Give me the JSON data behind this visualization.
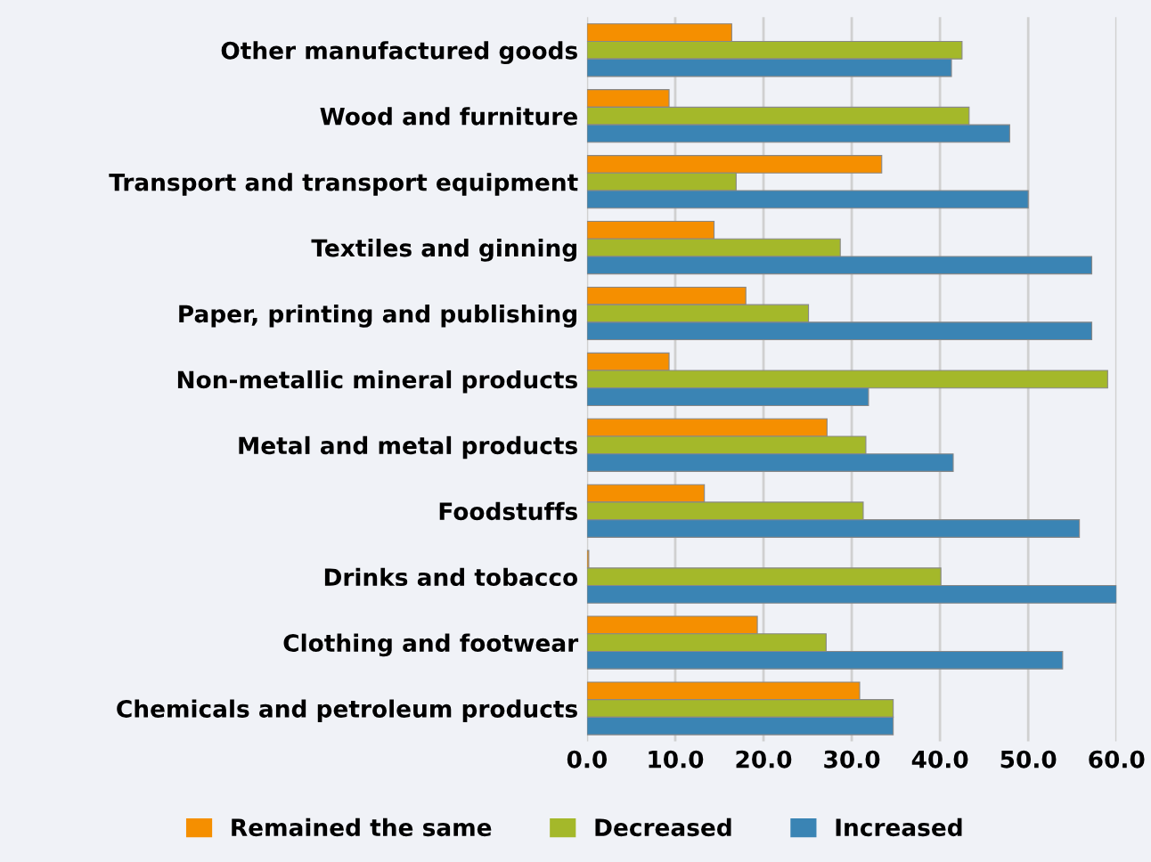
{
  "chart_data": {
    "type": "bar",
    "orientation": "horizontal",
    "categories": [
      "Other manufactured goods",
      "Wood and furniture",
      "Transport and transport equipment",
      "Textiles and ginning",
      "Paper, printing and publishing",
      "Non-metallic mineral products",
      "Metal and metal products",
      "Foodstuffs",
      "Drinks and tobacco",
      "Clothing and footwear",
      "Chemicals and petroleum products"
    ],
    "series": [
      {
        "name": "Remained the same",
        "color": "#f58f00",
        "values": [
          16.4,
          9.3,
          33.4,
          14.4,
          18.0,
          9.3,
          27.2,
          13.3,
          0.2,
          19.3,
          30.9
        ]
      },
      {
        "name": "Decreased",
        "color": "#a4b82a",
        "values": [
          42.5,
          43.3,
          16.9,
          28.7,
          25.1,
          59.0,
          31.6,
          31.3,
          40.1,
          27.1,
          34.7
        ]
      },
      {
        "name": "Increased",
        "color": "#3a84b4",
        "values": [
          41.3,
          47.9,
          50.0,
          57.2,
          57.2,
          31.9,
          41.5,
          55.8,
          60.0,
          53.9,
          34.7
        ]
      }
    ],
    "xlim": [
      0,
      60
    ],
    "xticks": [
      {
        "value": 0,
        "label": "0.0"
      },
      {
        "value": 10,
        "label": "10.0"
      },
      {
        "value": 20,
        "label": "20.0"
      },
      {
        "value": 30,
        "label": "30.0"
      },
      {
        "value": 40,
        "label": "40.0"
      },
      {
        "value": 50,
        "label": "50.0"
      },
      {
        "value": 60,
        "label": "60.0"
      }
    ],
    "grid": "x",
    "legend": "bottom"
  }
}
